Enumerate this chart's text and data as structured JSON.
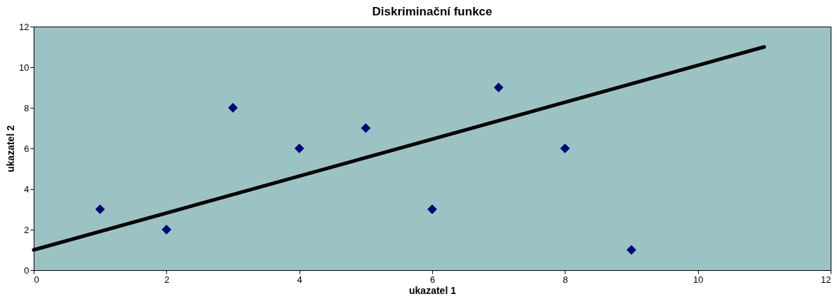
{
  "chart_data": {
    "type": "scatter",
    "title": "Diskriminační funkce",
    "xlabel": "ukazatel 1",
    "ylabel": "ukazatel 2",
    "x": [
      1,
      2,
      3,
      4,
      5,
      6,
      7,
      8,
      9
    ],
    "series": [
      {
        "color": "#000080",
        "values": [
          3,
          2,
          8,
          6,
          7,
          3,
          9,
          6,
          1
        ],
        "marker": "diamond"
      },
      {
        "type": "line",
        "color": "#000000",
        "x": [
          0,
          11
        ],
        "values": [
          1,
          11
        ],
        "marker": "none",
        "line_style": "solid"
      }
    ],
    "xlim": [
      0,
      12
    ],
    "xticks": [
      0,
      2,
      4,
      6,
      8,
      10,
      12
    ],
    "ylim": [
      0,
      12
    ],
    "yticks": [
      0,
      2,
      4,
      6,
      8,
      10,
      12
    ],
    "grid": false
  }
}
